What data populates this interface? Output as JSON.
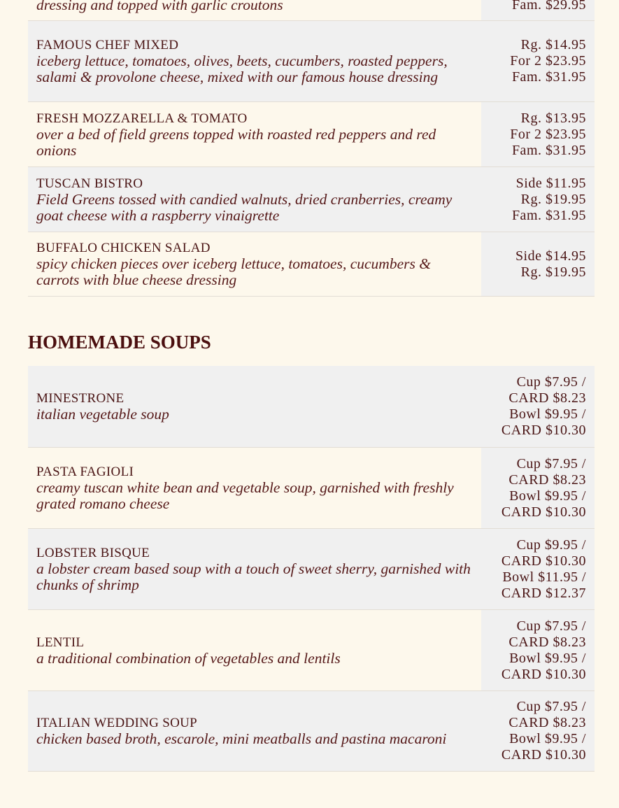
{
  "salads": [
    {
      "name": "",
      "desc": "dressing and topped with garlic croutons",
      "prices": [
        "Fam. $29.95"
      ]
    },
    {
      "name": "FAMOUS CHEF MIXED",
      "desc": "iceberg lettuce, tomatoes, olives, beets, cucumbers, roasted peppers, salami & provolone cheese, mixed with our famous house dressing",
      "prices": [
        "Rg. $14.95",
        "For 2 $23.95",
        "Fam. $31.95"
      ]
    },
    {
      "name": "FRESH MOZZARELLA & TOMATO",
      "desc": "over a bed of field greens topped with roasted red peppers and red onions",
      "prices": [
        "Rg. $13.95",
        "For 2 $23.95",
        "Fam. $31.95"
      ]
    },
    {
      "name": "TUSCAN BISTRO",
      "desc": "Field Greens tossed with candied walnuts, dried cranberries, creamy goat cheese with a raspberry vinaigrette",
      "prices": [
        "Side $11.95",
        "Rg. $19.95",
        "Fam. $31.95"
      ]
    },
    {
      "name": "BUFFALO CHICKEN SALAD",
      "desc": "spicy chicken pieces over iceberg lettuce, tomatoes, cucumbers & carrots with blue cheese dressing",
      "prices": [
        "Side $14.95",
        "Rg. $19.95"
      ]
    }
  ],
  "soups_heading": "HOMEMADE SOUPS",
  "soups": [
    {
      "name": "MINESTRONE",
      "desc": "italian vegetable soup",
      "prices": [
        "Cup $7.95 /",
        "CARD $8.23",
        "Bowl $9.95 /",
        "CARD $10.30"
      ]
    },
    {
      "name": "PASTA FAGIOLI",
      "desc": "creamy tuscan white bean and vegetable soup, garnished with freshly grated romano cheese",
      "prices": [
        "Cup $7.95 /",
        "CARD $8.23",
        "Bowl $9.95 /",
        "CARD $10.30"
      ]
    },
    {
      "name": "LOBSTER BISQUE",
      "desc": "a lobster cream based soup with a touch of sweet sherry, garnished with chunks of shrimp",
      "prices": [
        "Cup $9.95 /",
        "CARD $10.30",
        "Bowl $11.95 /",
        "CARD $12.37"
      ]
    },
    {
      "name": "LENTIL",
      "desc": "a traditional combination of vegetables and lentils",
      "prices": [
        "Cup $7.95 /",
        "CARD $8.23",
        "Bowl $9.95 /",
        "CARD $10.30"
      ]
    },
    {
      "name": "ITALIAN WEDDING SOUP",
      "desc": "chicken based broth, escarole, mini meatballs and pastina macaroni",
      "prices": [
        "Cup $7.95 /",
        "CARD $8.23",
        "Bowl $9.95 /",
        "CARD $10.30"
      ]
    }
  ]
}
